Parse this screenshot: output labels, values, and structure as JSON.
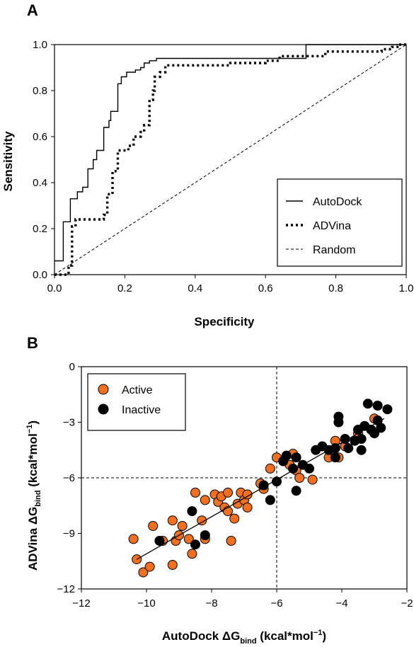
{
  "colors": {
    "active": "#f07020",
    "inactive": "#000000",
    "line": "#000000"
  },
  "chart_data": [
    {
      "panel": "A",
      "type": "line",
      "xlabel": "Specificity",
      "ylabel": "Sensitivity",
      "xlim": [
        0,
        1
      ],
      "ylim": [
        0,
        1
      ],
      "xticks": [
        "0.0",
        "0.2",
        "0.4",
        "0.6",
        "0.8",
        "1.0"
      ],
      "yticks": [
        "0.0",
        "0.2",
        "0.4",
        "0.6",
        "0.8",
        "1.0"
      ],
      "legend_position": "bottom-right",
      "series": [
        {
          "name": "AutoDock",
          "style": "solid",
          "points": [
            [
              0,
              0.06
            ],
            [
              0.025,
              0.06
            ],
            [
              0.025,
              0.23
            ],
            [
              0.045,
              0.23
            ],
            [
              0.045,
              0.33
            ],
            [
              0.065,
              0.33
            ],
            [
              0.065,
              0.36
            ],
            [
              0.08,
              0.36
            ],
            [
              0.08,
              0.38
            ],
            [
              0.095,
              0.38
            ],
            [
              0.095,
              0.46
            ],
            [
              0.11,
              0.46
            ],
            [
              0.11,
              0.5
            ],
            [
              0.12,
              0.5
            ],
            [
              0.12,
              0.54
            ],
            [
              0.14,
              0.54
            ],
            [
              0.14,
              0.64
            ],
            [
              0.155,
              0.64
            ],
            [
              0.155,
              0.67
            ],
            [
              0.16,
              0.67
            ],
            [
              0.16,
              0.71
            ],
            [
              0.18,
              0.71
            ],
            [
              0.18,
              0.83
            ],
            [
              0.19,
              0.83
            ],
            [
              0.19,
              0.86
            ],
            [
              0.205,
              0.86
            ],
            [
              0.205,
              0.88
            ],
            [
              0.23,
              0.88
            ],
            [
              0.23,
              0.89
            ],
            [
              0.245,
              0.89
            ],
            [
              0.245,
              0.9
            ],
            [
              0.255,
              0.9
            ],
            [
              0.255,
              0.92
            ],
            [
              0.27,
              0.92
            ],
            [
              0.27,
              0.93
            ],
            [
              0.29,
              0.93
            ],
            [
              0.29,
              0.94
            ],
            [
              0.715,
              0.94
            ],
            [
              0.715,
              1.0
            ],
            [
              1.0,
              1.0
            ]
          ]
        },
        {
          "name": "ADVina",
          "style": "dotted",
          "points": [
            [
              0,
              0
            ],
            [
              0.04,
              0
            ],
            [
              0.04,
              0.04
            ],
            [
              0.05,
              0.04
            ],
            [
              0.05,
              0.21
            ],
            [
              0.06,
              0.21
            ],
            [
              0.06,
              0.24
            ],
            [
              0.14,
              0.24
            ],
            [
              0.14,
              0.26
            ],
            [
              0.15,
              0.26
            ],
            [
              0.15,
              0.35
            ],
            [
              0.165,
              0.35
            ],
            [
              0.165,
              0.45
            ],
            [
              0.18,
              0.45
            ],
            [
              0.18,
              0.54
            ],
            [
              0.21,
              0.54
            ],
            [
              0.21,
              0.56
            ],
            [
              0.225,
              0.56
            ],
            [
              0.225,
              0.6
            ],
            [
              0.245,
              0.6
            ],
            [
              0.245,
              0.62
            ],
            [
              0.255,
              0.62
            ],
            [
              0.255,
              0.65
            ],
            [
              0.27,
              0.65
            ],
            [
              0.27,
              0.76
            ],
            [
              0.28,
              0.76
            ],
            [
              0.28,
              0.8
            ],
            [
              0.285,
              0.8
            ],
            [
              0.285,
              0.86
            ],
            [
              0.3,
              0.86
            ],
            [
              0.3,
              0.88
            ],
            [
              0.315,
              0.88
            ],
            [
              0.315,
              0.91
            ],
            [
              0.5,
              0.91
            ],
            [
              0.5,
              0.92
            ],
            [
              0.6,
              0.92
            ],
            [
              0.6,
              0.93
            ],
            [
              0.64,
              0.93
            ],
            [
              0.64,
              0.95
            ],
            [
              0.77,
              0.95
            ],
            [
              0.77,
              0.97
            ],
            [
              0.93,
              0.97
            ],
            [
              0.93,
              0.98
            ],
            [
              0.96,
              0.98
            ],
            [
              0.96,
              0.99
            ],
            [
              0.975,
              0.99
            ],
            [
              0.975,
              1.0
            ],
            [
              1.0,
              1.0
            ]
          ]
        },
        {
          "name": "Random",
          "style": "dashed",
          "points": [
            [
              0,
              0
            ],
            [
              1,
              1
            ]
          ]
        }
      ]
    },
    {
      "panel": "B",
      "type": "scatter",
      "xlim": [
        -12,
        -2
      ],
      "ylim": [
        -12,
        0
      ],
      "xticks": [
        "−12",
        "−10",
        "−8",
        "−6",
        "−4",
        "−2"
      ],
      "yticks": [
        "0",
        "−3",
        "−6",
        "−9",
        "−12"
      ],
      "xlabel_main": "AutoDock ΔG",
      "xlabel_sub": "bind",
      "xlabel_tail": " (kcal*mol",
      "xlabel_sup": "−1",
      "xlabel_close": ")",
      "ylabel_main": "ADVina ΔG",
      "ylabel_sub": "bind",
      "ylabel_tail": " (kcal*mol",
      "ylabel_sup": "−1",
      "ylabel_close": ")",
      "reference_lines": {
        "x": -6,
        "y": -6
      },
      "fit_line": [
        [
          -10.3,
          -10.4
        ],
        [
          -2.7,
          -2.8
        ]
      ],
      "legend_position": "top-left",
      "series": [
        {
          "name": "Active",
          "points": [
            [
              -10.4,
              -9.3
            ],
            [
              -10.3,
              -10.4
            ],
            [
              -10.1,
              -11.1
            ],
            [
              -9.9,
              -10.8
            ],
            [
              -9.8,
              -8.6
            ],
            [
              -9.5,
              -9.4
            ],
            [
              -9.2,
              -8.3
            ],
            [
              -9.1,
              -9.4
            ],
            [
              -9.2,
              -10.7
            ],
            [
              -9.0,
              -9.1
            ],
            [
              -8.9,
              -8.6
            ],
            [
              -8.7,
              -9.3
            ],
            [
              -8.6,
              -10.1
            ],
            [
              -8.5,
              -6.8
            ],
            [
              -8.3,
              -8.3
            ],
            [
              -8.2,
              -9.3
            ],
            [
              -8.2,
              -7.2
            ],
            [
              -7.9,
              -6.9
            ],
            [
              -7.8,
              -7.3
            ],
            [
              -7.7,
              -7.0
            ],
            [
              -7.6,
              -7.6
            ],
            [
              -7.5,
              -6.8
            ],
            [
              -7.4,
              -9.4
            ],
            [
              -7.5,
              -7.8
            ],
            [
              -7.3,
              -8.2
            ],
            [
              -7.2,
              -7.4
            ],
            [
              -7.1,
              -6.8
            ],
            [
              -7.0,
              -7.2
            ],
            [
              -6.9,
              -7.6
            ],
            [
              -6.9,
              -6.9
            ],
            [
              -6.5,
              -6.3
            ],
            [
              -6.4,
              -6.6
            ],
            [
              -6.2,
              -5.5
            ],
            [
              -6.0,
              -4.9
            ],
            [
              -5.6,
              -5.3
            ],
            [
              -5.5,
              -4.7
            ],
            [
              -5.4,
              -5.6
            ],
            [
              -5.3,
              -6.0
            ],
            [
              -4.9,
              -6.1
            ],
            [
              -4.4,
              -4.9
            ],
            [
              -4.2,
              -4.0
            ],
            [
              -4.1,
              -4.9
            ],
            [
              -3.9,
              -4.3
            ],
            [
              -3.5,
              -3.6
            ],
            [
              -3.0,
              -2.8
            ]
          ]
        },
        {
          "name": "Inactive",
          "points": [
            [
              -9.6,
              -9.4
            ],
            [
              -8.6,
              -7.8
            ],
            [
              -8.5,
              -9.6
            ],
            [
              -8.2,
              -9.1
            ],
            [
              -6.4,
              -6.4
            ],
            [
              -6.2,
              -7.2
            ],
            [
              -6.0,
              -6.2
            ],
            [
              -5.8,
              -5.1
            ],
            [
              -5.7,
              -4.8
            ],
            [
              -5.5,
              -5.5
            ],
            [
              -5.4,
              -6.7
            ],
            [
              -5.4,
              -4.9
            ],
            [
              -5.2,
              -5.3
            ],
            [
              -5.0,
              -5.5
            ],
            [
              -4.8,
              -4.5
            ],
            [
              -4.6,
              -4.3
            ],
            [
              -4.4,
              -4.5
            ],
            [
              -4.2,
              -4.9
            ],
            [
              -4.2,
              -4.4
            ],
            [
              -4.1,
              -2.7
            ],
            [
              -4.1,
              -3.0
            ],
            [
              -3.9,
              -3.9
            ],
            [
              -3.8,
              -4.4
            ],
            [
              -3.6,
              -4.0
            ],
            [
              -3.5,
              -3.4
            ],
            [
              -3.4,
              -4.5
            ],
            [
              -3.4,
              -3.9
            ],
            [
              -3.3,
              -3.2
            ],
            [
              -3.2,
              -2.0
            ],
            [
              -3.1,
              -3.4
            ],
            [
              -2.9,
              -2.1
            ],
            [
              -2.8,
              -3.3
            ],
            [
              -2.6,
              -2.3
            ],
            [
              -3.0,
              -3.6
            ],
            [
              -2.9,
              -2.9
            ]
          ]
        }
      ]
    }
  ]
}
